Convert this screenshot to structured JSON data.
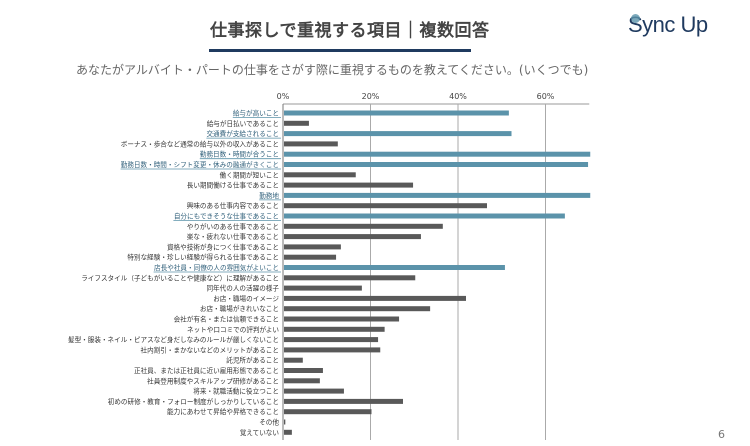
{
  "header": {
    "title": "仕事探しで重視する項目｜複数回答",
    "logo_text": "Sync Up",
    "subtitle": "あなたがアルバイト・パートの仕事をさがす際に重視するものを教えてください。(いくつでも)",
    "page_number": "6"
  },
  "colors": {
    "highlight": "#5b93aa",
    "default": "#595959",
    "title_underline": "#1f3a5f"
  },
  "chart_data": {
    "type": "bar",
    "orientation": "horizontal",
    "xlim": [
      0,
      70
    ],
    "x_ticks": [
      "0%",
      "20%",
      "40%",
      "60%"
    ],
    "grid": true,
    "categories": [
      "給与が高いこと",
      "給与が日払いであること",
      "交通費が支給されること",
      "ボーナス・歩合など通常の給与以外の収入があること",
      "勤務日数・時間が合うこと",
      "勤務日数・時間・シフト変更・休みの融通がきくこと",
      "働く期間が短いこと",
      "長い期間働ける仕事であること",
      "勤務地",
      "興味のある仕事内容であること",
      "自分にもできそうな仕事であること",
      "やりがいのある仕事であること",
      "楽な・疲れない仕事であること",
      "資格や技術が身につく仕事であること",
      "特別な経験・珍しい経験が得られる仕事であること",
      "店長や社員・同僚の人の雰囲気がよいこと",
      "ライフスタイル（子どもがいることや健康など）に理解があること",
      "同年代の人の活躍の様子",
      "お店・職場のイメージ",
      "お店・職場がきれいなこと",
      "会社が有名・または信頼できること",
      "ネットや口コミでの評判がよい",
      "髪型・服装・ネイル・ピアスなど身だしなみのルールが厳しくないこと",
      "社内割引・まかないなどのメリットがあること",
      "託児所があること",
      "正社員、または正社員に近い雇用形態であること",
      "社員登用制度やスキルアップ研修があること",
      "将来・就職活動に役立つこと",
      "初めの研修・教育・フォロー制度がしっかりしていること",
      "能力にあわせて昇給や昇格できること",
      "その他",
      "覚えていない"
    ],
    "values": [
      51.4,
      5.7,
      52,
      12.3,
      72,
      69.5,
      16.4,
      29.5,
      72,
      46.4,
      64.2,
      36.3,
      31.3,
      13,
      11.9,
      50.5,
      30,
      17.8,
      41.6,
      33.4,
      26.3,
      23,
      21.5,
      22,
      4.3,
      8.9,
      8.2,
      13.7,
      27.2,
      20,
      0.3,
      1.8
    ],
    "highlighted": [
      true,
      false,
      true,
      false,
      true,
      true,
      false,
      false,
      true,
      false,
      true,
      false,
      false,
      false,
      false,
      true,
      false,
      false,
      false,
      false,
      false,
      false,
      false,
      false,
      false,
      false,
      false,
      false,
      false,
      false,
      false,
      false
    ]
  }
}
